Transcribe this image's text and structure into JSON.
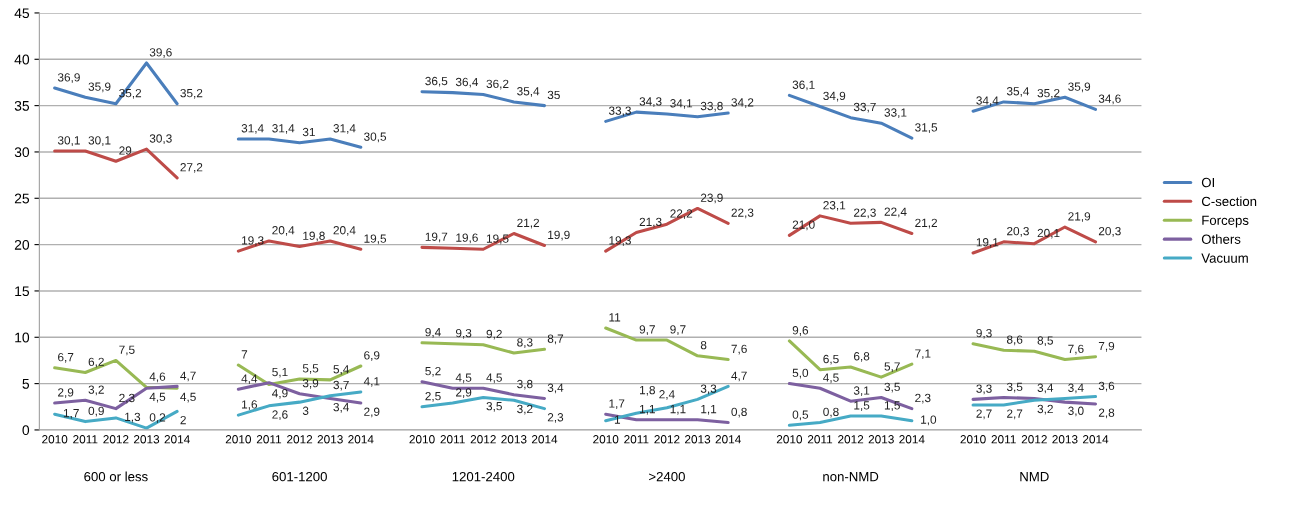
{
  "chart_data": {
    "type": "line",
    "categories": [
      "2010",
      "2011",
      "2012",
      "2013",
      "2014",
      null,
      "2010",
      "2011",
      "2012",
      "2013",
      "2014",
      null,
      "2010",
      "2011",
      "2012",
      "2013",
      "2014",
      null,
      "2010",
      "2011",
      "2012",
      "2013",
      "2014",
      null,
      "2010",
      "2011",
      "2012",
      "2013",
      "2014",
      null,
      "2010",
      "2011",
      "2012",
      "2013",
      "2014",
      null
    ],
    "annotations": [
      "600 or less",
      "601-1200",
      "1201-2400",
      ">2400",
      "non-NMD",
      "NMD"
    ],
    "ylim": [
      0,
      45
    ],
    "yticks": [
      0,
      5,
      10,
      15,
      20,
      25,
      30,
      35,
      40,
      45
    ],
    "grid": "y",
    "legend": "right",
    "series": [
      {
        "name": "OI",
        "color": "#4a7ebb",
        "values": [
          36.9,
          35.9,
          35.2,
          39.6,
          35.2,
          null,
          31.4,
          31.4,
          31,
          31.4,
          30.5,
          null,
          36.5,
          36.4,
          36.2,
          35.4,
          35,
          null,
          33.3,
          34.3,
          34.1,
          33.8,
          34.2,
          null,
          36.1,
          34.9,
          33.7,
          33.1,
          31.5,
          null,
          34.4,
          35.4,
          35.2,
          35.9,
          34.6,
          null
        ],
        "value_labels": [
          "36,9",
          "35,9",
          "35,2",
          "39,6",
          "35,2",
          null,
          "31,4",
          "31,4",
          "31",
          "31,4",
          "30,5",
          null,
          "36,5",
          "36,4",
          "36,2",
          "35,4",
          "35",
          null,
          "33,3",
          "34,3",
          "34,1",
          "33,8",
          "34,2",
          null,
          "36,1",
          "34,9",
          "33,7",
          "33,1",
          "31,5",
          null,
          "34,4",
          "35,4",
          "35,2",
          "35,9",
          "34,6",
          null
        ]
      },
      {
        "name": "C-section",
        "color": "#be4b48",
        "values": [
          30.1,
          30.1,
          29,
          30.3,
          27.2,
          null,
          19.3,
          20.4,
          19.8,
          20.4,
          19.5,
          null,
          19.7,
          19.6,
          19.5,
          21.2,
          19.9,
          null,
          19.3,
          21.3,
          22.2,
          23.9,
          22.3,
          null,
          21.0,
          23.1,
          22.3,
          22.4,
          21.2,
          null,
          19.1,
          20.3,
          20.1,
          21.9,
          20.3,
          null
        ],
        "value_labels": [
          "30,1",
          "30,1",
          "29",
          "30,3",
          "27,2",
          null,
          "19,3",
          "20,4",
          "19,8",
          "20,4",
          "19,5",
          null,
          "19,7",
          "19,6",
          "19,5",
          "21,2",
          "19,9",
          null,
          "19,3",
          "21,3",
          "22,2",
          "23,9",
          "22,3",
          null,
          "21,0",
          "23,1",
          "22,3",
          "22,4",
          "21,2",
          null,
          "19,1",
          "20,3",
          "20,1",
          "21,9",
          "20,3",
          null
        ]
      },
      {
        "name": "Forceps",
        "color": "#98b954",
        "values": [
          6.7,
          6.2,
          7.5,
          4.6,
          4.5,
          null,
          7,
          4.9,
          5.5,
          5.4,
          6.9,
          null,
          9.4,
          9.3,
          9.2,
          8.3,
          8.7,
          null,
          11,
          9.7,
          9.7,
          8,
          7.6,
          null,
          9.6,
          6.5,
          6.8,
          5.7,
          7.1,
          null,
          9.3,
          8.6,
          8.5,
          7.6,
          7.9,
          null
        ],
        "value_labels": [
          "6,7",
          "6,2",
          "7,5",
          "4,6",
          "4,5",
          null,
          "7",
          "4,9",
          "5,5",
          "5,4",
          "6,9",
          null,
          "9,4",
          "9,3",
          "9,2",
          "8,3",
          "8,7",
          null,
          "11",
          "9,7",
          "9,7",
          "8",
          "7,6",
          null,
          "9,6",
          "6,5",
          "6,8",
          "5,7",
          "7,1",
          null,
          "9,3",
          "8,6",
          "8,5",
          "7,6",
          "7,9",
          null
        ]
      },
      {
        "name": "Others",
        "color": "#7d60a0",
        "values": [
          2.9,
          3.2,
          2.3,
          4.5,
          4.7,
          null,
          4.4,
          5.1,
          3.9,
          3.4,
          2.9,
          null,
          5.2,
          4.5,
          4.5,
          3.8,
          3.4,
          null,
          1.7,
          1.1,
          1.1,
          1.1,
          0.8,
          null,
          5.0,
          4.5,
          3.1,
          3.5,
          2.3,
          null,
          3.3,
          3.5,
          3.4,
          3.0,
          2.8,
          null
        ],
        "value_labels": [
          "2,9",
          "3,2",
          "2,3",
          "4,5",
          "4,7",
          null,
          "4,4",
          "5,1",
          "3,9",
          "3,4",
          "2,9",
          null,
          "5,2",
          "4,5",
          "4,5",
          "3,8",
          "3,4",
          null,
          "1,7",
          "1,1",
          "1,1",
          "1,1",
          "0,8",
          null,
          "5,0",
          "4,5",
          "3,1",
          "3,5",
          "2,3",
          null,
          "3,3",
          "3,5",
          "3,4",
          "3,0",
          "2,8",
          null
        ]
      },
      {
        "name": "Vacuum",
        "color": "#46aac5",
        "values": [
          1.7,
          0.9,
          1.3,
          0.2,
          2,
          null,
          1.6,
          2.6,
          3,
          3.7,
          4.1,
          null,
          2.5,
          2.9,
          3.5,
          3.2,
          2.3,
          null,
          1,
          1.8,
          2.4,
          3.3,
          4.7,
          null,
          0.5,
          0.8,
          1.5,
          1.5,
          1.0,
          null,
          2.7,
          2.7,
          3.2,
          3.4,
          3.6,
          null
        ],
        "value_labels": [
          "1,7",
          "0,9",
          "1,3",
          "0,2",
          "2",
          null,
          "1,6",
          "2,6",
          "3",
          "3,7",
          "4,1",
          null,
          "2,5",
          "2,9",
          "3,5",
          "3,2",
          "2,3",
          null,
          "1",
          "1,8",
          "2,4",
          "3,3",
          "4,7",
          null,
          "0,5",
          "0,8",
          "1,5",
          "1,5",
          "1,0",
          null,
          "2,7",
          "2,7",
          "3,2",
          "3,4",
          "3,6",
          null
        ]
      }
    ]
  }
}
